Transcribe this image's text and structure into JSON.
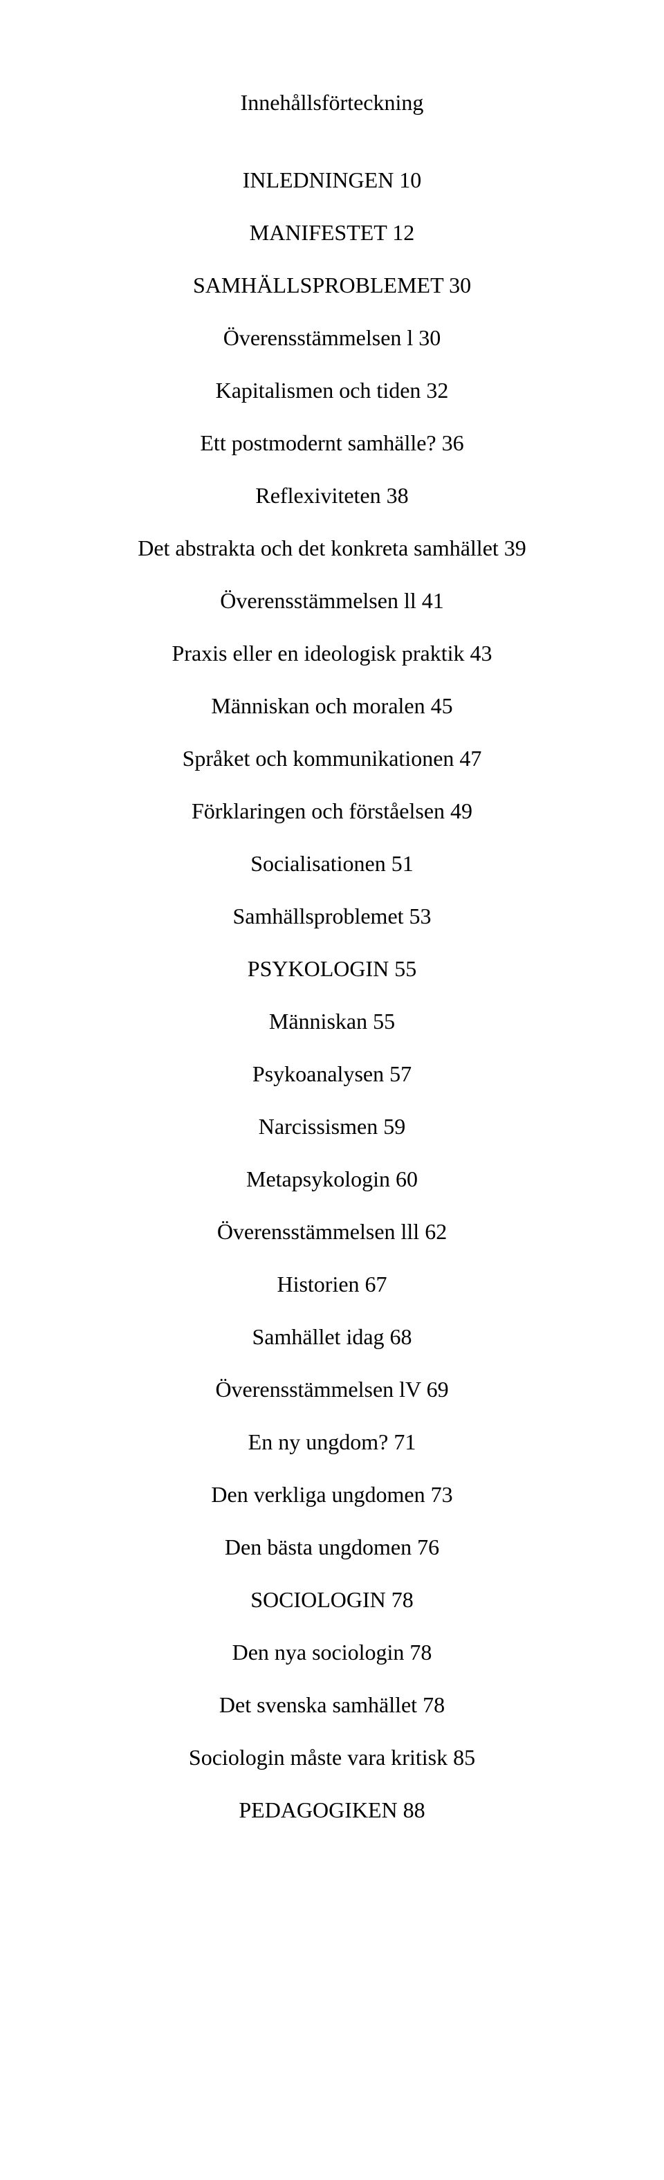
{
  "font": {
    "family": "Times New Roman",
    "size_pt": 32,
    "color": "#000000",
    "background": "#ffffff"
  },
  "toc": {
    "title": "Innehållsförteckning",
    "entries": [
      {
        "label": "INLEDNINGEN",
        "page": 10
      },
      {
        "label": "MANIFESTET",
        "page": 12
      },
      {
        "label": "SAMHÄLLSPROBLEMET",
        "page": 30
      },
      {
        "label": "Överensstämmelsen l",
        "page": 30
      },
      {
        "label": "Kapitalismen och tiden",
        "page": 32
      },
      {
        "label": "Ett postmodernt samhälle?",
        "page": 36
      },
      {
        "label": "Reflexiviteten",
        "page": 38
      },
      {
        "label": "Det abstrakta och det konkreta samhället",
        "page": 39
      },
      {
        "label": "Överensstämmelsen ll",
        "page": 41
      },
      {
        "label": "Praxis eller en ideologisk praktik",
        "page": 43
      },
      {
        "label": "Människan och moralen",
        "page": 45
      },
      {
        "label": "Språket och kommunikationen",
        "page": 47
      },
      {
        "label": "Förklaringen och förståelsen",
        "page": 49
      },
      {
        "label": "Socialisationen",
        "page": 51
      },
      {
        "label": "Samhällsproblemet",
        "page": 53
      },
      {
        "label": "PSYKOLOGIN",
        "page": 55
      },
      {
        "label": "Människan",
        "page": 55
      },
      {
        "label": "Psykoanalysen",
        "page": 57
      },
      {
        "label": "Narcissismen",
        "page": 59
      },
      {
        "label": "Metapsykologin",
        "page": 60
      },
      {
        "label": "Överensstämmelsen lll",
        "page": 62
      },
      {
        "label": "Historien",
        "page": 67
      },
      {
        "label": "Samhället idag",
        "page": 68
      },
      {
        "label": "Överensstämmelsen lV",
        "page": 69
      },
      {
        "label": "En ny ungdom?",
        "page": 71
      },
      {
        "label": "Den verkliga ungdomen",
        "page": 73
      },
      {
        "label": "Den bästa ungdomen",
        "page": 76
      },
      {
        "label": "SOCIOLOGIN",
        "page": 78
      },
      {
        "label": "Den nya sociologin",
        "page": 78
      },
      {
        "label": "Det svenska samhället",
        "page": 78
      },
      {
        "label": "Sociologin måste vara kritisk",
        "page": 85
      },
      {
        "label": "PEDAGOGIKEN",
        "page": 88
      }
    ]
  }
}
